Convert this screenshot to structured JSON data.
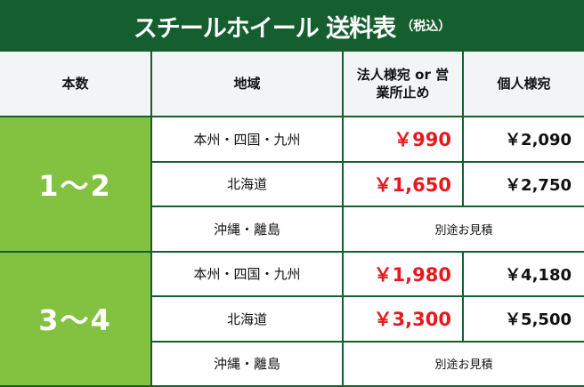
{
  "title": {
    "main": "スチールホイール 送料表",
    "sub": "（税込）"
  },
  "headers": [
    "本数",
    "地域",
    "法人様宛 or 営業所止め",
    "個人様宛"
  ],
  "groups": [
    {
      "label": "1〜2",
      "rows": [
        {
          "region": "本州・四国・九州",
          "business": "￥990",
          "personal": "￥2,090"
        },
        {
          "region": "北海道",
          "business": "￥1,650",
          "personal": "￥2,750"
        },
        {
          "region": "沖縄・離島",
          "note": "別途お見積"
        }
      ]
    },
    {
      "label": "3〜4",
      "rows": [
        {
          "region": "本州・四国・九州",
          "business": "￥1,980",
          "personal": "￥4,180"
        },
        {
          "region": "北海道",
          "business": "￥3,300",
          "personal": "￥5,500"
        },
        {
          "region": "沖縄・離島",
          "note": "別途お見積"
        }
      ]
    }
  ],
  "colors": {
    "header_green": "#155e2f",
    "group_green": "#83c141",
    "price_red": "#e8191e"
  }
}
